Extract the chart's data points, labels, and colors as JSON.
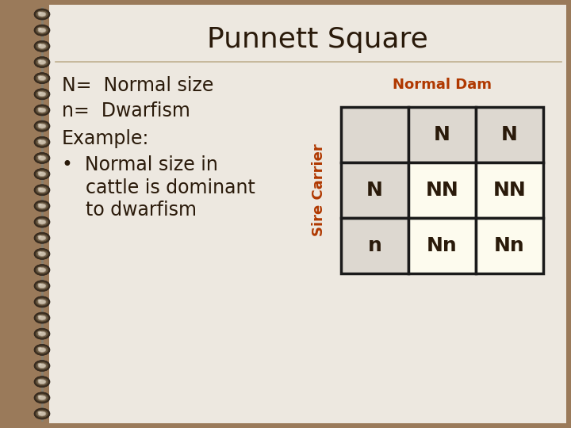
{
  "title": "Punnett Square",
  "title_fontsize": 26,
  "bg_outer": "#9a7a5a",
  "paper_color": "#ede8e0",
  "title_color": "#2a1a0a",
  "separator_color": "#c0b090",
  "text_color": "#2a1a0a",
  "text_fontsize": 17,
  "normal_dam_label": "Normal Dam",
  "sire_carrier_label": "Sire Carrier",
  "label_color": "#b03800",
  "label_fontsize": 13,
  "header_bg": "#ddd8d0",
  "cell_bg": "#fdfbee",
  "cell_color": "#2a1a0a",
  "cell_fontsize": 18,
  "grid_color": "#1a1a1a",
  "grid_lw": 2.5,
  "spiral_dark": "#4a3a28",
  "spiral_mid": "#7a6a54",
  "spiral_light": "#c0b090",
  "wire_color": "#888070"
}
